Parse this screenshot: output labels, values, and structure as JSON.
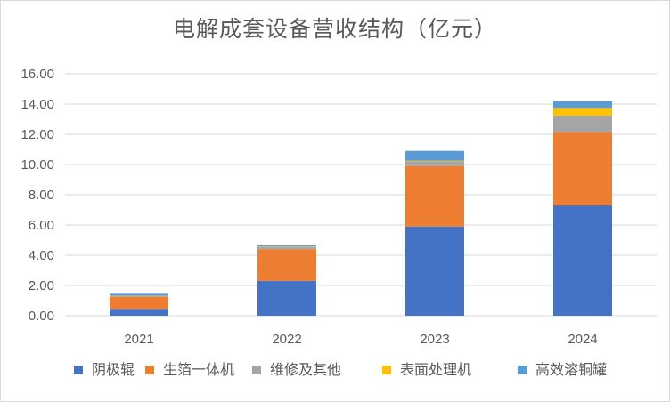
{
  "chart_data": {
    "type": "bar",
    "stacked": true,
    "title": "电解成套设备营收结构（亿元）",
    "categories": [
      "2021",
      "2022",
      "2023",
      "2024"
    ],
    "series": [
      {
        "name": "阴极辊",
        "color": "#4472C4",
        "values": [
          0.45,
          2.3,
          5.9,
          7.3
        ]
      },
      {
        "name": "生箔一体机",
        "color": "#ED7D31",
        "values": [
          0.8,
          2.1,
          4.0,
          4.85
        ]
      },
      {
        "name": "维修及其他",
        "color": "#A5A5A5",
        "values": [
          0.05,
          0.15,
          0.3,
          1.1
        ]
      },
      {
        "name": "表面处理机",
        "color": "#FFC000",
        "values": [
          0.02,
          0.03,
          0.05,
          0.5
        ]
      },
      {
        "name": "高效溶铜罐",
        "color": "#5B9BD5",
        "values": [
          0.13,
          0.07,
          0.65,
          0.45
        ]
      }
    ],
    "ylim": [
      0,
      16
    ],
    "yticks": [
      "0.00",
      "2.00",
      "4.00",
      "6.00",
      "8.00",
      "10.00",
      "12.00",
      "14.00",
      "16.00"
    ],
    "grid": true,
    "legend_position": "bottom"
  }
}
